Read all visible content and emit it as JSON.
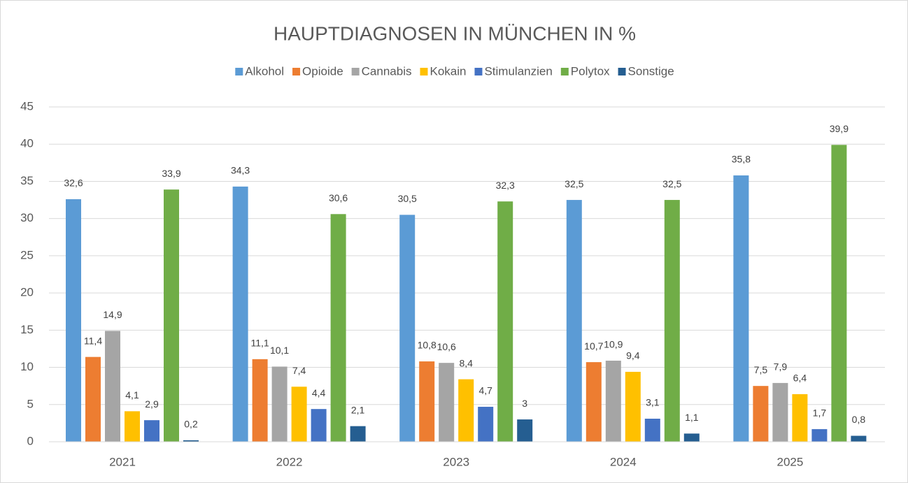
{
  "chart_data": {
    "type": "bar",
    "title": "HAUPTDIAGNOSEN IN MÜNCHEN IN %",
    "categories": [
      "2021",
      "2022",
      "2023",
      "2024",
      "2025"
    ],
    "series": [
      {
        "name": "Alkohol",
        "color": "#5b9bd5",
        "values": [
          32.6,
          34.3,
          30.5,
          32.5,
          35.8
        ],
        "value_labels": [
          "32,6",
          "34,3",
          "30,5",
          "32,5",
          "35,8"
        ]
      },
      {
        "name": "Opioide",
        "color": "#ed7d31",
        "values": [
          11.4,
          11.1,
          10.8,
          10.7,
          7.5
        ],
        "value_labels": [
          "11,4",
          "11,1",
          "10,8",
          "10,7",
          "7,5"
        ]
      },
      {
        "name": "Cannabis",
        "color": "#a5a5a5",
        "values": [
          14.9,
          10.1,
          10.6,
          10.9,
          7.9
        ],
        "value_labels": [
          "14,9",
          "10,1",
          "10,6",
          "10,9",
          "7,9"
        ]
      },
      {
        "name": "Kokain",
        "color": "#ffc000",
        "values": [
          4.1,
          7.4,
          8.4,
          9.4,
          6.4
        ],
        "value_labels": [
          "4,1",
          "7,4",
          "8,4",
          "9,4",
          "6,4"
        ]
      },
      {
        "name": "Stimulanzien",
        "color": "#4472c4",
        "values": [
          2.9,
          4.4,
          4.7,
          3.1,
          1.7
        ],
        "value_labels": [
          "2,9",
          "4,4",
          "4,7",
          "3,1",
          "1,7"
        ]
      },
      {
        "name": "Polytox",
        "color": "#70ad47",
        "values": [
          33.9,
          30.6,
          32.3,
          32.5,
          39.9
        ],
        "value_labels": [
          "33,9",
          "30,6",
          "32,3",
          "32,5",
          "39,9"
        ]
      },
      {
        "name": "Sonstige",
        "color": "#255e91",
        "values": [
          0.2,
          2.1,
          3,
          1.1,
          0.8
        ],
        "value_labels": [
          "0,2",
          "2,1",
          "3",
          "1,1",
          "0,8"
        ]
      }
    ],
    "ylim": [
      0,
      45
    ],
    "yticks": [
      0,
      5,
      10,
      15,
      20,
      25,
      30,
      35,
      40,
      45
    ],
    "grid": true,
    "legend": "top"
  }
}
